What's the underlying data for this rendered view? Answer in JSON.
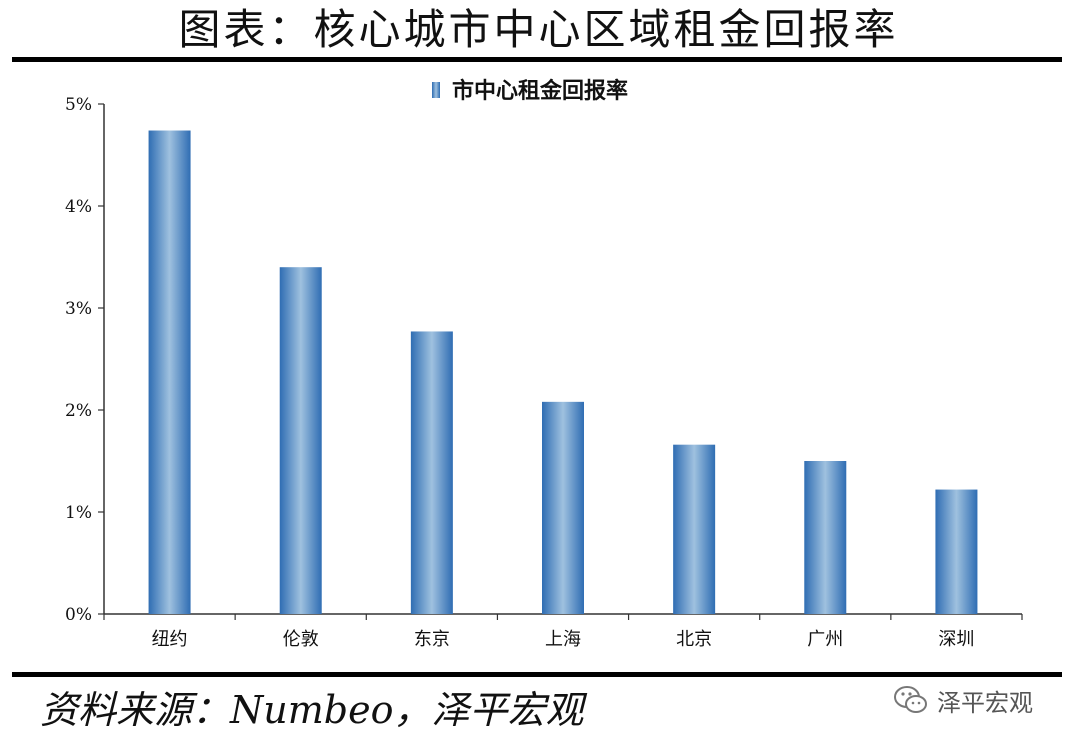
{
  "title": "图表：核心城市中心区域租金回报率",
  "source": "资料来源：Numbeo，泽平宏观",
  "watermark": {
    "text": "泽平宏观",
    "icon": "wechat-icon"
  },
  "colors": {
    "bar_edge": "#2f6db3",
    "bar_center": "#9fc1df",
    "axis": "#333333"
  },
  "chart_data": {
    "type": "bar",
    "title": "图表：核心城市中心区域租金回报率",
    "categories": [
      "纽约",
      "伦敦",
      "东京",
      "上海",
      "北京",
      "广州",
      "深圳"
    ],
    "series": [
      {
        "name": "市中心租金回报率",
        "values": [
          4.74,
          3.4,
          2.77,
          2.08,
          1.66,
          1.5,
          1.22
        ]
      }
    ],
    "ylim": [
      0,
      5
    ],
    "yticks": [
      "0%",
      "1%",
      "2%",
      "3%",
      "4%",
      "5%"
    ],
    "ytick_values": [
      0,
      1,
      2,
      3,
      4,
      5
    ],
    "y_unit": "%",
    "legend_position": "top-center",
    "grid": false
  }
}
